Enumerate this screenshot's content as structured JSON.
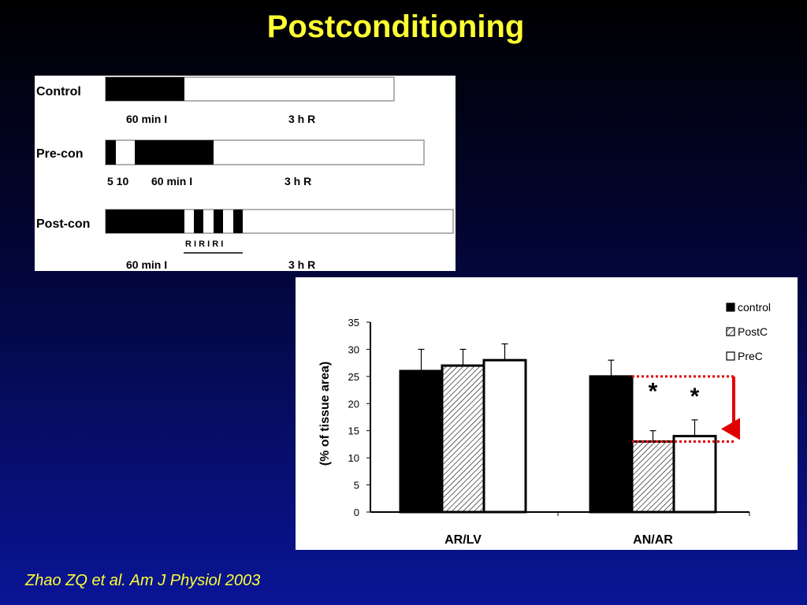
{
  "slide": {
    "title": "Postconditioning",
    "citation": "Zhao ZQ et al. Am J Physiol 2003"
  },
  "protocol": {
    "control": {
      "label": "Control",
      "ischemia": "60 min I",
      "reperfusion": "3 h R"
    },
    "precon": {
      "label": "Pre-con",
      "brief": "5 10",
      "ischemia": "60 min I",
      "reperfusion": "3 h R"
    },
    "postcon": {
      "label": "Post-con",
      "cycles": "R I R I R I",
      "ischemia": "60 min I",
      "reperfusion": "3 h R"
    }
  },
  "chart_data": {
    "type": "bar",
    "categories": [
      "AR/LV",
      "AN/AR"
    ],
    "xlabel": "",
    "ylabel": "(% of tissue area)",
    "ylim": [
      0,
      35
    ],
    "yticks": [
      0,
      5,
      10,
      15,
      20,
      25,
      30,
      35
    ],
    "series": [
      {
        "name": "control",
        "values": [
          26,
          25
        ],
        "errors": [
          4,
          3
        ],
        "pattern": "solid",
        "color": "#000000"
      },
      {
        "name": "PostC",
        "values": [
          27,
          13
        ],
        "errors": [
          3,
          2
        ],
        "pattern": "hatched",
        "color": "#000000"
      },
      {
        "name": "PreC",
        "values": [
          28,
          14
        ],
        "errors": [
          3,
          3
        ],
        "pattern": "open",
        "color": "#ffffff"
      }
    ],
    "legend": "top-right",
    "annotations": [
      {
        "text": "*",
        "category": "AN/AR",
        "series": "PostC"
      },
      {
        "text": "*",
        "category": "AN/AR",
        "series": "PreC"
      }
    ],
    "highlight_color": "#e00000"
  }
}
